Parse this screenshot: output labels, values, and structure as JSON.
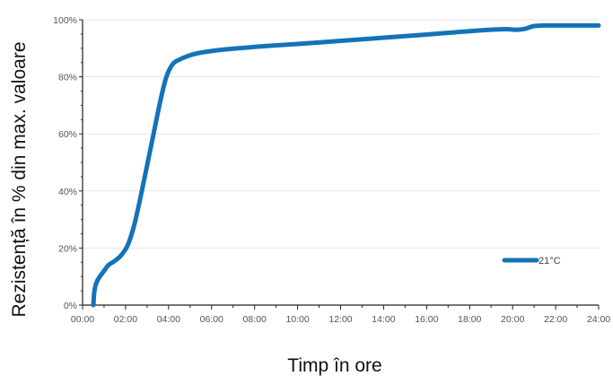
{
  "chart_data": {
    "type": "line",
    "title": "",
    "xlabel": "Timp în ore",
    "ylabel": "Rezistență în % din max. valoare",
    "x_ticks": [
      "00:00",
      "02:00",
      "04:00",
      "06:00",
      "08:00",
      "10:00",
      "12:00",
      "14:00",
      "16:00",
      "18:00",
      "20:00",
      "22:00",
      "24:00"
    ],
    "y_ticks": [
      "0%",
      "20%",
      "40%",
      "60%",
      "80%",
      "100%"
    ],
    "xlim": [
      0,
      24
    ],
    "ylim": [
      0,
      100
    ],
    "grid": {
      "x": false,
      "y": true
    },
    "legend_position": "bottom-right",
    "series": [
      {
        "name": "21°C",
        "color": "#1473b8",
        "x": [
          0.5,
          0.55,
          0.65,
          0.8,
          1.0,
          1.2,
          1.5,
          1.8,
          2.1,
          2.4,
          2.7,
          3.0,
          3.3,
          3.6,
          3.9,
          4.2,
          4.5,
          4.8,
          5.2,
          5.7,
          6.5,
          8.0,
          10.0,
          12.0,
          14.0,
          16.0,
          18.0,
          19.0,
          19.7,
          20.2,
          20.6,
          21.0,
          21.5,
          22.0,
          23.0,
          24.0
        ],
        "y": [
          0,
          5,
          8,
          10,
          12,
          14,
          15.5,
          17.5,
          21,
          28,
          38,
          49,
          60,
          71,
          80,
          84.5,
          86,
          87,
          88,
          88.7,
          89.5,
          90.5,
          91.5,
          92.6,
          93.7,
          94.8,
          96,
          96.5,
          96.7,
          96.5,
          96.9,
          97.8,
          98,
          98,
          98,
          98
        ]
      }
    ]
  }
}
